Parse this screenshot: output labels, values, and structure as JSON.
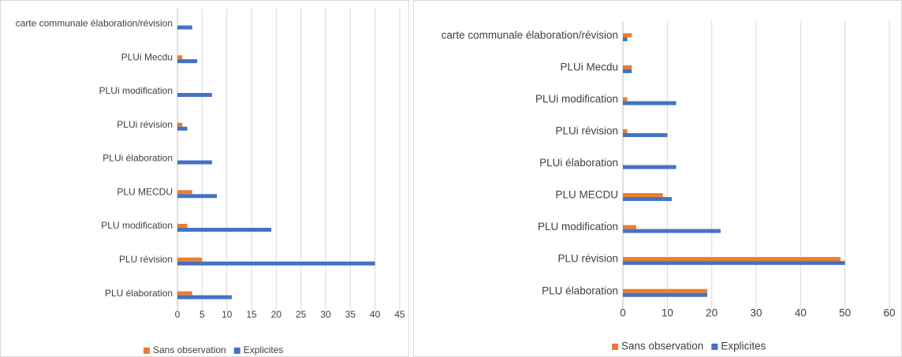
{
  "chart_data": [
    {
      "type": "bar",
      "orientation": "horizontal",
      "categories": [
        "PLU élaboration",
        "PLU révision",
        "PLU modification",
        "PLU MECDU",
        "PLUi élaboration",
        "PLUi révision",
        "PLUi modification",
        "PLUi Mecdu",
        "carte communale élaboration/révision"
      ],
      "series": [
        {
          "name": "Sans observation",
          "color": "#ed7d31",
          "values": [
            3,
            5,
            2,
            3,
            0,
            1,
            0,
            1,
            0
          ]
        },
        {
          "name": "Explicites",
          "color": "#4472c4",
          "values": [
            11,
            40,
            19,
            8,
            7,
            2,
            7,
            4,
            3
          ]
        }
      ],
      "xlim": [
        0,
        45
      ],
      "xticks": [
        0,
        5,
        10,
        15,
        20,
        25,
        30,
        35,
        40,
        45
      ],
      "grid": true,
      "legend": "bottom"
    },
    {
      "type": "bar",
      "orientation": "horizontal",
      "categories": [
        "PLU élaboration",
        "PLU révision",
        "PLU modification",
        "PLU MECDU",
        "PLUi élaboration",
        "PLUi révision",
        "PLUi modification",
        "PLUi Mecdu",
        "carte communale élaboration/révision"
      ],
      "series": [
        {
          "name": "Sans observation",
          "color": "#ed7d31",
          "values": [
            19,
            49,
            3,
            9,
            0,
            1,
            1,
            2,
            2
          ]
        },
        {
          "name": "Explicites",
          "color": "#4472c4",
          "values": [
            19,
            50,
            22,
            11,
            12,
            10,
            12,
            2,
            1
          ]
        }
      ],
      "xlim": [
        0,
        60
      ],
      "xticks": [
        0,
        10,
        20,
        30,
        40,
        50,
        60
      ],
      "grid": true,
      "legend": "bottom"
    }
  ]
}
